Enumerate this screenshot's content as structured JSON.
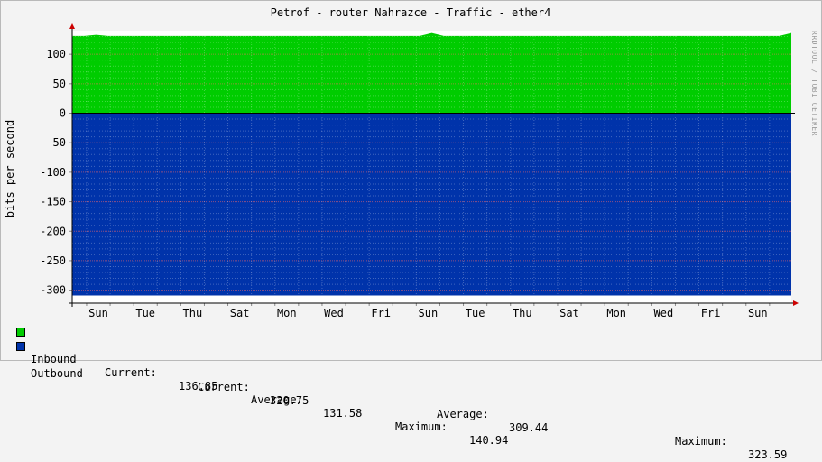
{
  "chart_data": {
    "type": "area",
    "title": "Petrof - router Nahrazce - Traffic - ether4",
    "ylabel": "bits per second",
    "watermark": "RRDTOOL / TOBI OETIKER",
    "ylim": [
      -322,
      140
    ],
    "y_ticks": [
      100,
      50,
      0,
      -50,
      -100,
      -150,
      -200,
      -250,
      -300
    ],
    "x_tick_labels": [
      "Sun",
      "Tue",
      "Thu",
      "Sat",
      "Mon",
      "Wed",
      "Fri",
      "Sun",
      "Tue",
      "Thu",
      "Sat",
      "Mon",
      "Wed",
      "Fri",
      "Sun"
    ],
    "grid": true,
    "series": [
      {
        "name": "Inbound",
        "color": "#00cc00",
        "values": [
          131,
          131,
          133,
          131,
          131,
          131,
          131,
          131,
          131,
          131,
          131,
          131,
          131,
          131,
          131,
          131,
          131,
          131,
          131,
          131,
          131,
          131,
          131,
          131,
          131,
          131,
          131,
          131,
          131,
          131,
          136,
          131,
          131,
          131,
          131,
          131,
          131,
          131,
          131,
          131,
          131,
          131,
          131,
          131,
          131,
          131,
          131,
          131,
          131,
          131,
          131,
          131,
          131,
          131,
          131,
          131,
          131,
          131,
          131,
          131,
          136
        ],
        "current": "136.85",
        "average": "131.58",
        "maximum": "140.94"
      },
      {
        "name": "Outbound",
        "color": "#0033aa",
        "values": [
          -309,
          -309,
          -309,
          -309,
          -309,
          -309,
          -309,
          -309,
          -309,
          -309,
          -309,
          -309,
          -309,
          -309,
          -309,
          -309,
          -309,
          -309,
          -309,
          -309,
          -309,
          -309,
          -309,
          -309,
          -309,
          -309,
          -309,
          -309,
          -309,
          -309,
          -309,
          -309,
          -309,
          -309,
          -309,
          -309,
          -309,
          -309,
          -309,
          -309,
          -309,
          -309,
          -309,
          -309,
          -309,
          -309,
          -309,
          -309,
          -309,
          -309,
          -309,
          -309,
          -309,
          -309,
          -309,
          -309,
          -309,
          -309,
          -309,
          -309,
          -309
        ],
        "current": "320.75",
        "average": "309.44",
        "maximum": "323.59"
      }
    ]
  },
  "legend": {
    "current_label": "Current:",
    "average_label": "Average:",
    "maximum_label": "Maximum:"
  }
}
